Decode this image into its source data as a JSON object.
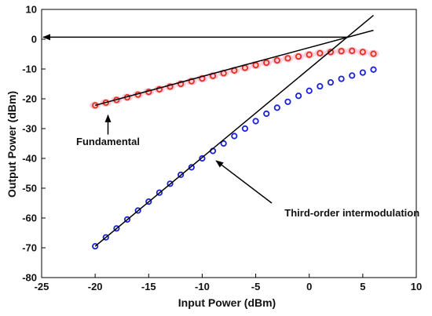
{
  "chart_data": {
    "type": "scatter",
    "title": "",
    "xlabel": "Input Power (dBm)",
    "ylabel": "Output Power (dBm)",
    "xlim": [
      -25,
      10
    ],
    "ylim": [
      -80,
      10
    ],
    "xticks": [
      -25,
      -20,
      -15,
      -10,
      -5,
      0,
      5,
      10
    ],
    "yticks": [
      -80,
      -70,
      -60,
      -50,
      -40,
      -30,
      -20,
      -10,
      0,
      10
    ],
    "grid": false,
    "legend": "none",
    "series": [
      {
        "x": [
          -20,
          -19,
          -18,
          -17,
          -16,
          -15,
          -14,
          -13,
          -12,
          -11,
          -10,
          -9,
          -8,
          -7,
          -6,
          -5,
          -4,
          -3,
          -2,
          -1,
          0,
          1,
          2,
          3,
          4,
          5,
          6
        ],
        "y": [
          -22.2,
          -21.3,
          -20.4,
          -19.5,
          -18.6,
          -17.7,
          -16.8,
          -15.9,
          -15.0,
          -14.1,
          -13.2,
          -12.3,
          -11.4,
          -10.5,
          -9.6,
          -8.7,
          -7.9,
          -7.1,
          -6.4,
          -5.8,
          -5.2,
          -4.7,
          -4.3,
          -4.0,
          -3.9,
          -4.3,
          -4.9
        ],
        "marker_color": "#e0301e",
        "halo_color": "#f4b8cc"
      },
      {
        "x": [
          -20,
          -19,
          -18,
          -17,
          -16,
          -15,
          -14,
          -13,
          -12,
          -11,
          -10,
          -9,
          -8,
          -7,
          -6,
          -5,
          -4,
          -3,
          -2,
          -1,
          0,
          1,
          2,
          3,
          4,
          5,
          6
        ],
        "y": [
          -69.5,
          -66.5,
          -63.5,
          -60.5,
          -57.5,
          -54.5,
          -51.5,
          -48.5,
          -45.5,
          -43.0,
          -40.0,
          -37.5,
          -35.0,
          -32.5,
          -30.0,
          -27.5,
          -25.0,
          -23.0,
          -21.0,
          -19.0,
          -17.3,
          -15.8,
          -14.5,
          -13.3,
          -12.2,
          -11.2,
          -10.2
        ],
        "marker_color": "#1a22d6"
      }
    ],
    "fit_lines": [
      {
        "from": [
          -20,
          -22.2
        ],
        "to": [
          6,
          3.0
        ]
      },
      {
        "from": [
          -20,
          -69.5
        ],
        "to": [
          6,
          8.0
        ]
      }
    ],
    "intercept_arrow": {
      "from": [
        3.5,
        0.7
      ],
      "to": [
        -25,
        0.7
      ]
    },
    "annotations": [
      {
        "text": "Fundamental",
        "text_at": [
          -18.8,
          -35.5
        ],
        "arrow_from": [
          -18.8,
          -32.0
        ],
        "arrow_to": [
          -18.8,
          -25.5
        ]
      },
      {
        "text": "Third-order intermodulation",
        "text_at": [
          4.0,
          -59.5
        ],
        "arrow_from": [
          -3.5,
          -55.0
        ],
        "arrow_to": [
          -8.7,
          -40.8
        ]
      }
    ],
    "colors": {
      "axis": "#000000",
      "line": "#000000"
    }
  }
}
